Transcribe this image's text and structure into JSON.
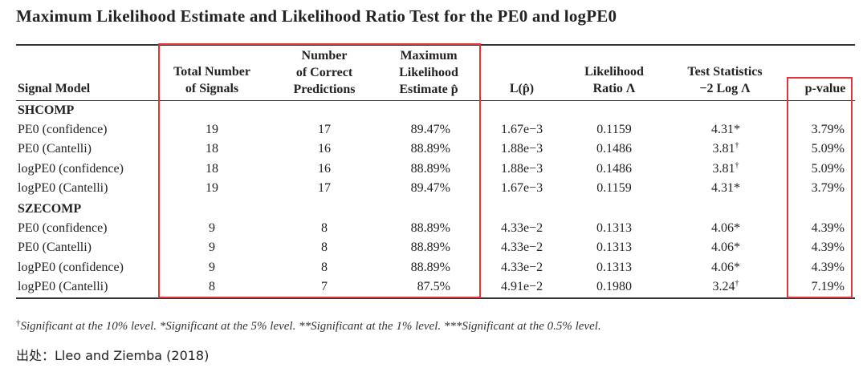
{
  "title": "Maximum Likelihood Estimate and Likelihood Ratio Test for the PE0 and logPE0",
  "headers": {
    "signal_model": "Signal Model",
    "total_1": "Total Number",
    "total_2": "of Signals",
    "correct_1": "Number",
    "correct_2": "of Correct",
    "correct_3": "Predictions",
    "mle_1": "Maximum",
    "mle_2": "Likelihood",
    "mle_3": "Estimate p̂",
    "lp": "L(p̂)",
    "lr_1": "Likelihood",
    "lr_2": "Ratio Λ",
    "ts_1": "Test Statistics",
    "ts_2": "−2 Log Λ",
    "pvalue": "p-value"
  },
  "groups": [
    {
      "name": "SHCOMP",
      "rows": [
        {
          "model": "PE0 (confidence)",
          "total": "19",
          "correct": "17",
          "mle": "89.47%",
          "lp": "1.67e−3",
          "lr": "0.1159",
          "ts": "4.31*",
          "p": "3.79%"
        },
        {
          "model": "PE0 (Cantelli)",
          "total": "18",
          "correct": "16",
          "mle": "88.89%",
          "lp": "1.88e−3",
          "lr": "0.1486",
          "ts": "3.81†",
          "p": "5.09%"
        },
        {
          "model": "logPE0 (confidence)",
          "total": "18",
          "correct": "16",
          "mle": "88.89%",
          "lp": "1.88e−3",
          "lr": "0.1486",
          "ts": "3.81†",
          "p": "5.09%"
        },
        {
          "model": "logPE0 (Cantelli)",
          "total": "19",
          "correct": "17",
          "mle": "89.47%",
          "lp": "1.67e−3",
          "lr": "0.1159",
          "ts": "4.31*",
          "p": "3.79%"
        }
      ]
    },
    {
      "name": "SZECOMP",
      "rows": [
        {
          "model": "PE0 (confidence)",
          "total": "9",
          "correct": "8",
          "mle": "88.89%",
          "lp": "4.33e−2",
          "lr": "0.1313",
          "ts": "4.06*",
          "p": "4.39%"
        },
        {
          "model": "PE0 (Cantelli)",
          "total": "9",
          "correct": "8",
          "mle": "88.89%",
          "lp": "4.33e−2",
          "lr": "0.1313",
          "ts": "4.06*",
          "p": "4.39%"
        },
        {
          "model": "logPE0 (confidence)",
          "total": "9",
          "correct": "8",
          "mle": "88.89%",
          "lp": "4.33e−2",
          "lr": "0.1313",
          "ts": "4.06*",
          "p": "4.39%"
        },
        {
          "model": "logPE0 (Cantelli)",
          "total": "8",
          "correct": "7",
          "mle": "87.5%",
          "lp": "4.91e−2",
          "lr": "0.1980",
          "ts": "3.24†",
          "p": "7.19%"
        }
      ]
    }
  ],
  "footnote": {
    "dagger": "†",
    "text": "Significant at the 10% level. *Significant at the 5% level. **Significant at the 1% level. ***Significant at the 0.5% level."
  },
  "source": "出处：Lleo and Ziemba (2018)",
  "colors": {
    "highlight_box": "#e5333a",
    "text": "#222222",
    "rules": "#333333"
  }
}
